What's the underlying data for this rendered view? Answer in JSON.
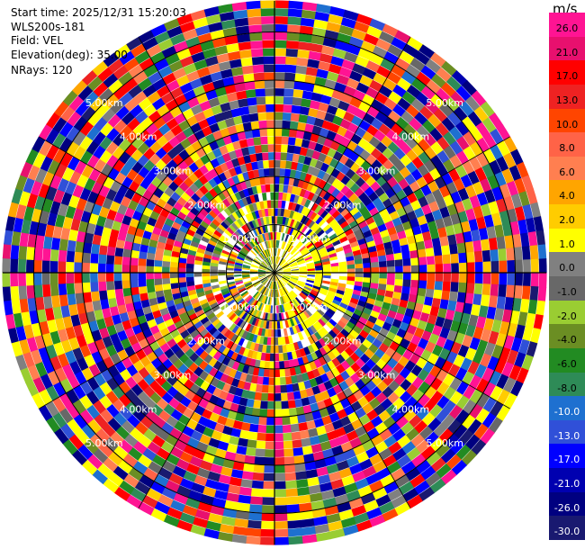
{
  "info": {
    "start_time": "Start time: 2025/12/31 15:20:03",
    "instrument": "WLS200s-181",
    "field": "Field: VEL",
    "elevation": "Elevation(deg): 35.00",
    "nrays": "NRays: 120"
  },
  "range_rings": [
    {
      "label": "1.00km",
      "km": 1
    },
    {
      "label": "2.00km",
      "km": 2
    },
    {
      "label": "3.00km",
      "km": 3
    },
    {
      "label": "4.00km",
      "km": 4
    },
    {
      "label": "5.00km",
      "km": 5
    }
  ],
  "colorbar": {
    "unit": "m/s",
    "labels": [
      "26.0",
      "21.0",
      "17.0",
      "13.0",
      "10.0",
      "8.0",
      "6.0",
      "4.0",
      "2.0",
      "1.0",
      "0.0",
      "-1.0",
      "-2.0",
      "-4.0",
      "-6.0",
      "-8.0",
      "-10.0",
      "-13.0",
      "-17.0",
      "-21.0",
      "-26.0",
      "-30.0"
    ],
    "colors": [
      "#ff1493",
      "#e8106e",
      "#ff0000",
      "#ee2222",
      "#ff4500",
      "#ff6347",
      "#ff7f50",
      "#ffa500",
      "#ffcc00",
      "#ffff00",
      "#808080",
      "#686868",
      "#9acd32",
      "#6b8e23",
      "#228b22",
      "#2e8b57",
      "#1e70d0",
      "#3050d8",
      "#0000ff",
      "#0000b0",
      "#000080",
      "#191970"
    ]
  }
}
